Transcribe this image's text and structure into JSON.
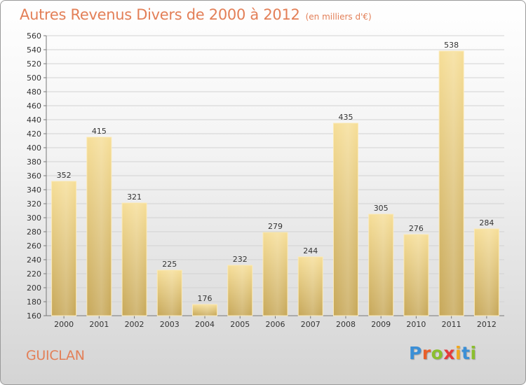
{
  "title": "Autres Revenus Divers de 2000 à 2012",
  "subtitle": "(en milliers d'€)",
  "commune": "GUICLAN",
  "logo": {
    "letters": [
      "P",
      "r",
      "o",
      "x",
      "i",
      "t",
      "i"
    ],
    "colors": [
      "#3b8fd6",
      "#e8602a",
      "#8bbf2e",
      "#e53b3b",
      "#f2a81d",
      "#3b8fd6",
      "#8bbf2e"
    ]
  },
  "colors": {
    "title": "#e37f57",
    "bar_light": "#f5dc95",
    "bar_dark": "#c8a95b",
    "grid": "#cfcfcf"
  },
  "chart_data": {
    "type": "bar",
    "title": "Autres Revenus Divers de 2000 à 2012",
    "subtitle": "(en milliers d'€)",
    "categories": [
      "2000",
      "2001",
      "2002",
      "2003",
      "2004",
      "2005",
      "2006",
      "2007",
      "2008",
      "2009",
      "2010",
      "2011",
      "2012"
    ],
    "values": [
      352,
      415,
      321,
      225,
      176,
      232,
      279,
      244,
      435,
      305,
      276,
      538,
      284
    ],
    "ylim": [
      160,
      560
    ],
    "ytick_step": 20,
    "grid": true,
    "xlabel": "",
    "ylabel": ""
  }
}
